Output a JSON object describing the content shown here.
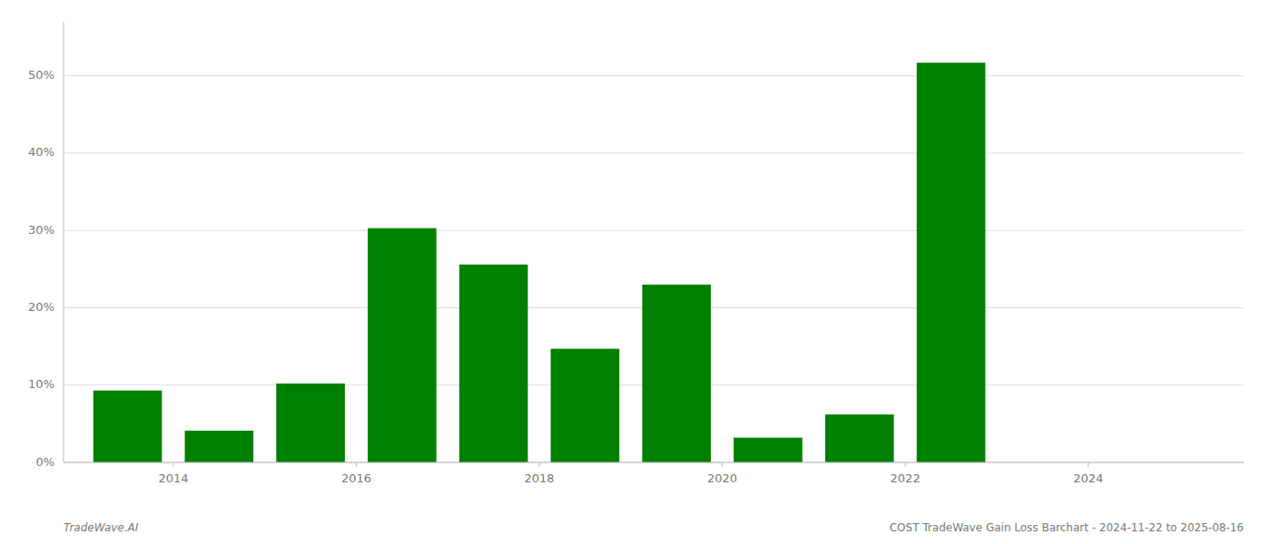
{
  "chart_data": {
    "type": "bar",
    "x": [
      2013,
      2014,
      2015,
      2016,
      2017,
      2018,
      2019,
      2020,
      2021,
      2022,
      2023
    ],
    "values": [
      9.3,
      4.1,
      10.2,
      30.3,
      25.6,
      14.7,
      23.0,
      3.2,
      6.2,
      51.7,
      0.0
    ],
    "color": "#008000",
    "xlim": [
      2012.3,
      2025.2
    ],
    "xticks": [
      {
        "value": 2013.5,
        "label": "2014"
      },
      {
        "value": 2015.5,
        "label": "2016"
      },
      {
        "value": 2017.5,
        "label": "2018"
      },
      {
        "value": 2019.5,
        "label": "2020"
      },
      {
        "value": 2021.5,
        "label": "2022"
      },
      {
        "value": 2023.5,
        "label": "2024"
      }
    ],
    "ylim": [
      0,
      57
    ],
    "yticks": [
      {
        "value": 0,
        "label": "0%"
      },
      {
        "value": 10,
        "label": "10%"
      },
      {
        "value": 20,
        "label": "20%"
      },
      {
        "value": 30,
        "label": "30%"
      },
      {
        "value": 40,
        "label": "40%"
      },
      {
        "value": 50,
        "label": "50%"
      }
    ],
    "grid": true,
    "annotations": [
      "TradeWave.AI",
      "COST TradeWave Gain Loss Barchart - 2024-11-22 to 2025-08-16"
    ]
  }
}
